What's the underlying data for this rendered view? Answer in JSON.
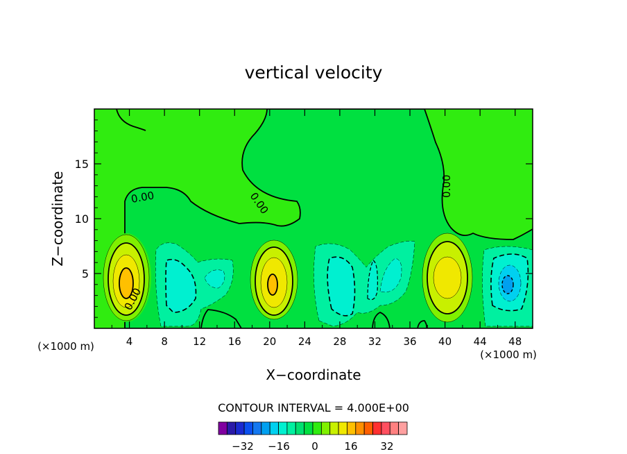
{
  "chart_data": {
    "type": "heatmap",
    "title": "vertical velocity",
    "xlabel": "X−coordinate",
    "ylabel": "Z−coordinate",
    "x_unit_left": "(×1000 m)",
    "x_unit_right": "(×1000 m)",
    "xlim": [
      0,
      50
    ],
    "ylim": [
      0,
      20
    ],
    "x_ticks": [
      4,
      8,
      12,
      16,
      20,
      24,
      28,
      32,
      36,
      40,
      44,
      48
    ],
    "y_ticks": [
      5,
      10,
      15
    ],
    "contour_interval_text": "CONTOUR INTERVAL = 4.000E+00",
    "contour_labels": [
      "0.00",
      "0.00",
      "0.00",
      "0.00"
    ],
    "colorbar": {
      "colors": [
        "#8000a0",
        "#2a1aa8",
        "#1a2ad0",
        "#0a50f0",
        "#1478f0",
        "#00a0f0",
        "#00d0f0",
        "#00f0d0",
        "#00f0a0",
        "#00e070",
        "#00e040",
        "#30ec10",
        "#80f000",
        "#c8f000",
        "#f0e800",
        "#ffc000",
        "#ff9000",
        "#ff6000",
        "#ff3030",
        "#ff5060",
        "#ff8080",
        "#ffa0a0"
      ],
      "tick_labels": [
        "−32",
        "−16",
        "0",
        "16",
        "32"
      ]
    }
  }
}
